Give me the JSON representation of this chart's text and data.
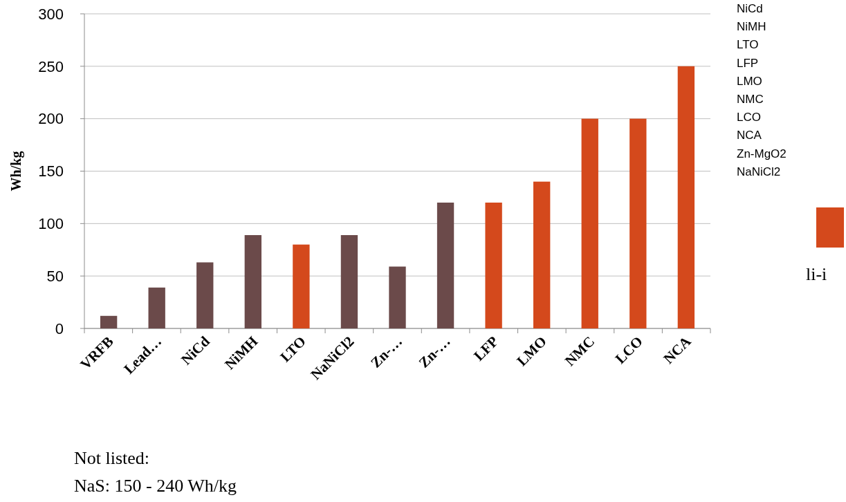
{
  "chart_data": {
    "type": "bar",
    "ylabel": "Wh/kg",
    "categories": [
      "VRFB",
      "Lead…",
      "NiCd",
      "NiMH",
      "LTO",
      "NaNiCl2",
      "Zn-…",
      "Zn-…",
      "LFP",
      "LMO",
      "NMC",
      "LCO",
      "NCA"
    ],
    "series": [
      {
        "color": "#6b4a4a",
        "values": [
          12,
          39,
          63,
          89,
          null,
          89,
          59,
          120,
          null,
          null,
          null,
          null,
          null
        ]
      },
      {
        "name": "li-i",
        "color": "#d4491c",
        "values": [
          null,
          null,
          null,
          null,
          80,
          null,
          null,
          null,
          120,
          140,
          200,
          200,
          250
        ]
      }
    ],
    "ylim": [
      0,
      300
    ],
    "yticks": [
      0,
      50,
      100,
      150,
      200,
      250,
      300
    ],
    "grid": "y",
    "legend": "right",
    "annotations": [
      "NiCd\nNiMH\nLTO\nLFP\nLMO\nNMC\nLCO\nNCA\nZn-MgO2\nNaNiCl2",
      "Not listed:\nNaS: 150 - 240 Wh/kg"
    ]
  }
}
